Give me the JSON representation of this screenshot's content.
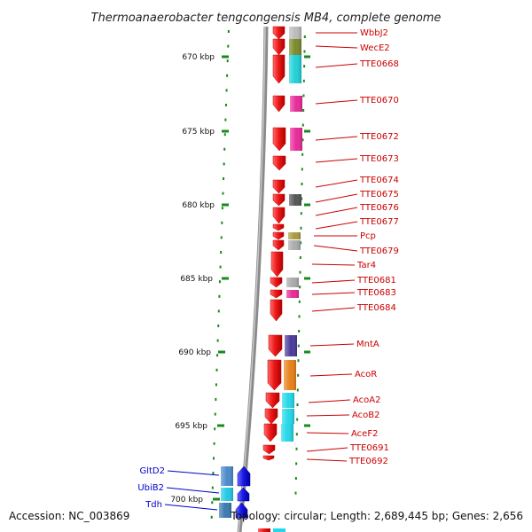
{
  "title": "Thermoanaerobacter tengcongensis MB4, complete genome",
  "footer": {
    "accession": "Accession: NC_003869",
    "topology": "Topology: circular; Length: 2,689,445 bp; Genes: 2,656"
  },
  "colors": {
    "forward_strand": "#e8121a",
    "reverse_strand": "#1a1ae6",
    "forward_label": "#cc0000",
    "reverse_label": "#0000cc",
    "tick_mark": "#1a8a1a",
    "backbone": "#888888"
  },
  "axis": {
    "unit": "kbp",
    "ticks": [
      {
        "label": "670 kbp"
      },
      {
        "label": "675 kbp"
      },
      {
        "label": "680 kbp"
      },
      {
        "label": "685 kbp"
      },
      {
        "label": "690 kbp"
      },
      {
        "label": "695 kbp"
      },
      {
        "label": "700 kbp"
      }
    ]
  },
  "genes": {
    "forward": [
      {
        "name": "WbbJ2",
        "color": "#bbbbbb"
      },
      {
        "name": "WecE2",
        "color": "#7a8a2a"
      },
      {
        "name": "TTE0668",
        "color": "#1fd0d8"
      },
      {
        "name": "TTE0670",
        "color": "#e82a98"
      },
      {
        "name": "TTE0672",
        "color": "#e82a98"
      },
      {
        "name": "TTE0673",
        "color": ""
      },
      {
        "name": "TTE0674",
        "color": ""
      },
      {
        "name": "TTE0675",
        "color": "#555555"
      },
      {
        "name": "TTE0676",
        "color": ""
      },
      {
        "name": "TTE0677",
        "color": ""
      },
      {
        "name": "Pcp",
        "color": "#a89a40"
      },
      {
        "name": "TTE0679",
        "color": "#aaaaaa"
      },
      {
        "name": "Tar4",
        "color": ""
      },
      {
        "name": "TTE0681",
        "color": "#aaaaaa"
      },
      {
        "name": "TTE0683",
        "color": "#e82a98"
      },
      {
        "name": "TTE0684",
        "color": ""
      },
      {
        "name": "MntA",
        "color": "#4a3a9a"
      },
      {
        "name": "AcoR",
        "color": "#e8801a"
      },
      {
        "name": "AcoA2",
        "color": "#22d8e8"
      },
      {
        "name": "AcoB2",
        "color": "#22d8e8"
      },
      {
        "name": "AceF2",
        "color": "#22d8e8"
      },
      {
        "name": "TTE0691",
        "color": ""
      },
      {
        "name": "TTE0692",
        "color": ""
      }
    ],
    "reverse": [
      {
        "name": "GltD2",
        "color": "#4a8acc"
      },
      {
        "name": "UbiB2",
        "color": "#22c8e8"
      },
      {
        "name": "Tdh",
        "color": "#3a7ab0"
      }
    ]
  }
}
